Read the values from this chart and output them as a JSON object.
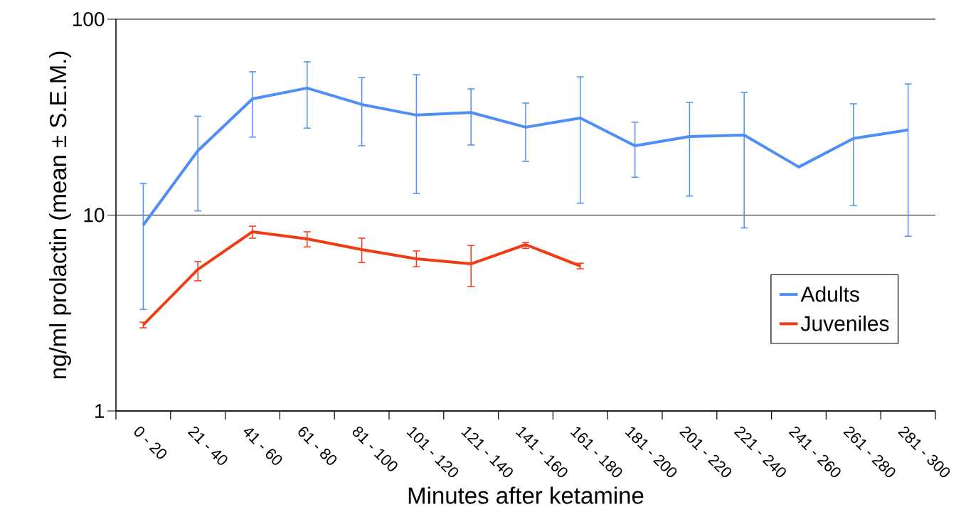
{
  "chart_data": {
    "type": "line",
    "xlabel": "Minutes after ketamine",
    "ylabel": "ng/ml prolactin (mean ± S.E.M.)",
    "categories": [
      "0 - 20",
      "21 - 40",
      "41 - 60",
      "61 - 80",
      "81 - 100",
      "101 - 120",
      "121 - 140",
      "141 - 160",
      "161 - 180",
      "181 - 200",
      "201 - 220",
      "221 - 240",
      "241 - 260",
      "261 - 280",
      "281 - 300"
    ],
    "series": [
      {
        "name": "Adults",
        "color": "#4f8ef5",
        "values": [
          8.9,
          21.3,
          39.2,
          44.5,
          36.7,
          32.4,
          33.4,
          28.1,
          31.3,
          22.6,
          25.2,
          25.6,
          17.6,
          24.6,
          27.2
        ],
        "errors": [
          [
            3.3,
            14.5
          ],
          [
            10.5,
            32
          ],
          [
            25,
            53.9
          ],
          [
            27.8,
            60.6
          ],
          [
            22.6,
            50.4
          ],
          [
            12.9,
            52.1
          ],
          [
            22.8,
            44.1
          ],
          [
            18.8,
            37.3
          ],
          [
            11.5,
            50.8
          ],
          [
            15.6,
            29.8
          ],
          [
            12.5,
            37.6
          ],
          [
            8.6,
            42.3
          ],
          null,
          [
            11.2,
            37
          ],
          [
            7.8,
            46.7
          ]
        ]
      },
      {
        "name": "Juveniles",
        "color": "#f03c14",
        "values": [
          2.75,
          5.28,
          8.22,
          7.56,
          6.67,
          5.98,
          5.64,
          7.07,
          5.5,
          null,
          null,
          null,
          null,
          null,
          null
        ],
        "errors": [
          [
            2.66,
            2.84
          ],
          [
            4.62,
            5.79
          ],
          [
            7.62,
            8.78
          ],
          [
            6.88,
            8.22
          ],
          [
            5.73,
            7.62
          ],
          [
            5.45,
            6.56
          ],
          [
            4.32,
            7.0
          ],
          [
            6.76,
            7.25
          ],
          [
            5.32,
            5.68
          ],
          null,
          null,
          null,
          null,
          null,
          null
        ]
      }
    ],
    "ylim": [
      1,
      100
    ],
    "yticks": [
      1,
      10,
      100
    ],
    "log": "y",
    "grid": "y",
    "legend": "right",
    "marker": "none",
    "line_style": "solid"
  }
}
